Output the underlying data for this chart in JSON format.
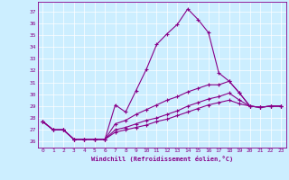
{
  "xlabel": "Windchill (Refroidissement éolien,°C)",
  "background_color": "#cceeff",
  "line_color": "#880088",
  "xlim": [
    -0.5,
    23.5
  ],
  "ylim": [
    25.5,
    37.8
  ],
  "yticks": [
    26,
    27,
    28,
    29,
    30,
    31,
    32,
    33,
    34,
    35,
    36,
    37
  ],
  "xticks": [
    0,
    1,
    2,
    3,
    4,
    5,
    6,
    7,
    8,
    9,
    10,
    11,
    12,
    13,
    14,
    15,
    16,
    17,
    18,
    19,
    20,
    21,
    22,
    23
  ],
  "series": [
    [
      27.7,
      27.0,
      27.0,
      26.2,
      26.2,
      26.2,
      26.2,
      29.1,
      28.5,
      30.3,
      32.1,
      34.2,
      35.1,
      35.9,
      37.2,
      36.3,
      35.2,
      31.8,
      31.1,
      30.1,
      29.0,
      28.9,
      29.0,
      29.0
    ],
    [
      27.7,
      27.0,
      27.0,
      26.2,
      26.2,
      26.2,
      26.2,
      27.5,
      27.8,
      28.3,
      28.7,
      29.1,
      29.5,
      29.8,
      30.2,
      30.5,
      30.8,
      30.8,
      31.1,
      30.1,
      29.0,
      28.9,
      29.0,
      29.0
    ],
    [
      27.7,
      27.0,
      27.0,
      26.2,
      26.2,
      26.2,
      26.2,
      27.0,
      27.2,
      27.5,
      27.8,
      28.0,
      28.3,
      28.6,
      29.0,
      29.3,
      29.6,
      29.8,
      30.1,
      29.5,
      29.0,
      28.9,
      29.0,
      29.0
    ],
    [
      27.7,
      27.0,
      27.0,
      26.2,
      26.2,
      26.2,
      26.2,
      26.8,
      27.0,
      27.2,
      27.4,
      27.7,
      27.9,
      28.2,
      28.5,
      28.8,
      29.1,
      29.3,
      29.5,
      29.2,
      29.0,
      28.9,
      29.0,
      29.0
    ]
  ]
}
